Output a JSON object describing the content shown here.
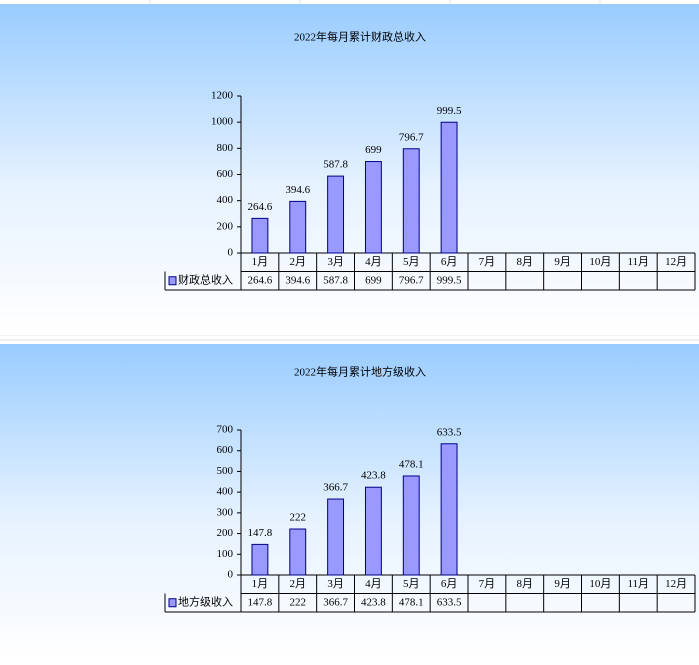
{
  "chart_data": [
    {
      "type": "bar",
      "title": "2022年每月累计财政总收入",
      "categories": [
        "1月",
        "2月",
        "3月",
        "4月",
        "5月",
        "6月",
        "7月",
        "8月",
        "9月",
        "10月",
        "11月",
        "12月"
      ],
      "series": [
        {
          "name": "财政总收入",
          "color": "#9999ff",
          "values": [
            264.6,
            394.6,
            587.8,
            699,
            796.7,
            999.5,
            null,
            null,
            null,
            null,
            null,
            null
          ]
        }
      ],
      "ylim": [
        0,
        1200
      ],
      "yticks": [
        0,
        200,
        400,
        600,
        800,
        1000,
        1200
      ],
      "grid": false,
      "data_table": true
    },
    {
      "type": "bar",
      "title": "2022年每月累计地方级收入",
      "categories": [
        "1月",
        "2月",
        "3月",
        "4月",
        "5月",
        "6月",
        "7月",
        "8月",
        "9月",
        "10月",
        "11月",
        "12月"
      ],
      "series": [
        {
          "name": "地方级收入",
          "color": "#9999ff",
          "values": [
            147.8,
            222,
            366.7,
            423.8,
            478.1,
            633.5,
            null,
            null,
            null,
            null,
            null,
            null
          ]
        }
      ],
      "ylim": [
        0,
        700
      ],
      "yticks": [
        0,
        100,
        200,
        300,
        400,
        500,
        600,
        700
      ],
      "grid": false,
      "data_table": true
    }
  ]
}
